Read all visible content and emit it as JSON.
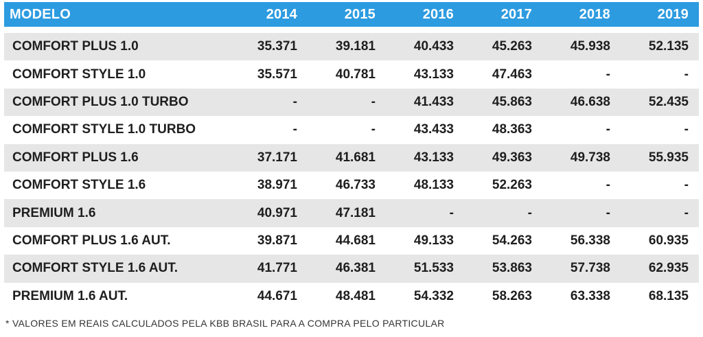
{
  "table": {
    "header": [
      "MODELO",
      "2014",
      "2015",
      "2016",
      "2017",
      "2018",
      "2019"
    ],
    "rows": [
      {
        "model": "COMFORT PLUS 1.0",
        "values": [
          "35.371",
          "39.181",
          "40.433",
          "45.263",
          "45.938",
          "52.135"
        ]
      },
      {
        "model": "COMFORT STYLE 1.0",
        "values": [
          "35.571",
          "40.781",
          "43.133",
          "47.463",
          "-",
          "-"
        ]
      },
      {
        "model": "COMFORT PLUS 1.0 TURBO",
        "values": [
          "-",
          "-",
          "41.433",
          "45.863",
          "46.638",
          "52.435"
        ]
      },
      {
        "model": "COMFORT STYLE 1.0 TURBO",
        "values": [
          "-",
          "-",
          "43.433",
          "48.363",
          "-",
          "-"
        ]
      },
      {
        "model": "COMFORT PLUS 1.6",
        "values": [
          "37.171",
          "41.681",
          "43.133",
          "49.363",
          "49.738",
          "55.935"
        ]
      },
      {
        "model": "COMFORT STYLE 1.6",
        "values": [
          "38.971",
          "46.733",
          "48.133",
          "52.263",
          "-",
          "-"
        ]
      },
      {
        "model": "PREMIUM 1.6",
        "values": [
          "40.971",
          "47.181",
          "-",
          "-",
          "-",
          "-"
        ]
      },
      {
        "model": "COMFORT PLUS 1.6 AUT.",
        "values": [
          "39.871",
          "44.681",
          "49.133",
          "54.263",
          "56.338",
          "60.935"
        ]
      },
      {
        "model": "COMFORT STYLE 1.6 AUT.",
        "values": [
          "41.771",
          "46.381",
          "51.533",
          "53.863",
          "57.738",
          "62.935"
        ]
      },
      {
        "model": "PREMIUM 1.6 AUT.",
        "values": [
          "44.671",
          "48.481",
          "54.332",
          "58.263",
          "63.338",
          "68.135"
        ]
      }
    ]
  },
  "footnote": "* VALORES EM REAIS CALCULADOS PELA KBB BRASIL PARA A COMPRA PELO PARTICULAR",
  "colors": {
    "header_bg": "#2d9be0",
    "stripe_bg": "#e6e6e6",
    "text": "#1e1e1e"
  }
}
